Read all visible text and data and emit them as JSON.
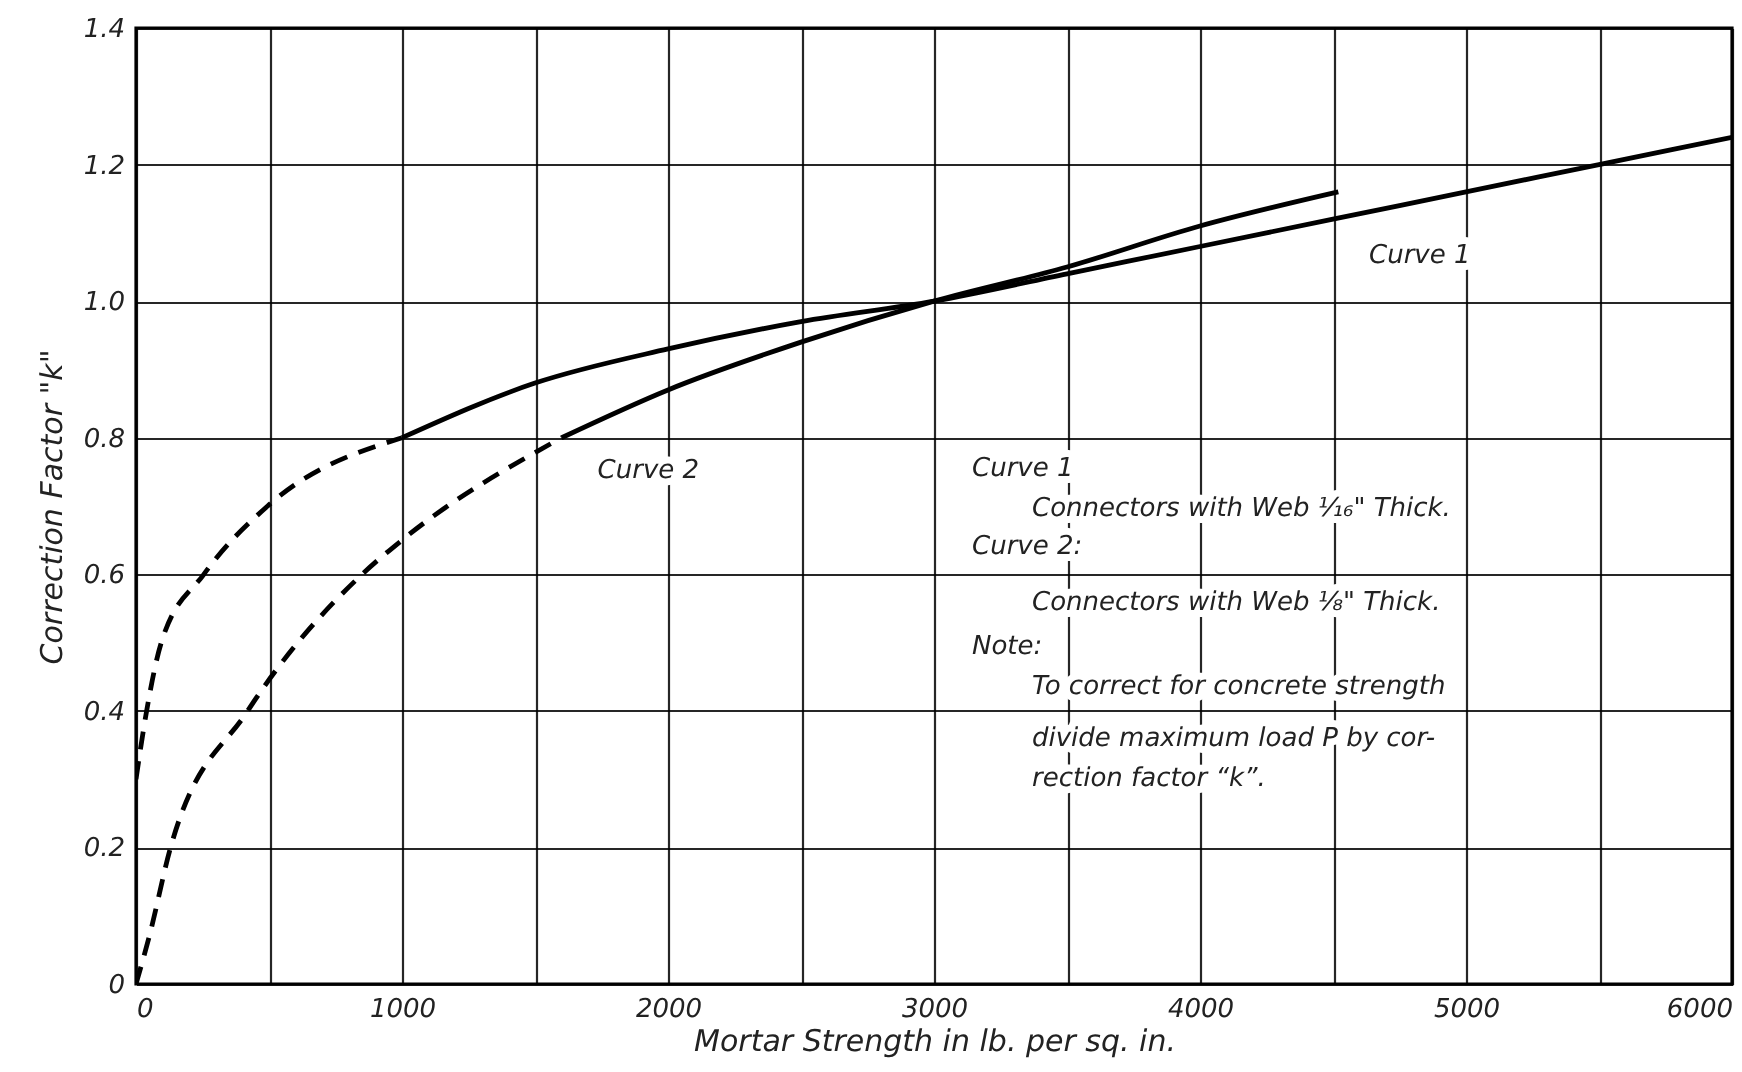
{
  "chart_data": {
    "type": "line",
    "xlabel": "Mortar Strength in lb. per sq. in.",
    "ylabel": "Correction Factor \"k\"",
    "xlim": [
      0,
      6000
    ],
    "ylim": [
      0,
      1.4
    ],
    "xticks": [
      0,
      {
        "value": 500,
        "label": null
      },
      1000,
      {
        "value": 1500,
        "label": null
      },
      2000,
      {
        "value": 2500,
        "label": null
      },
      3000,
      {
        "value": 3500,
        "label": null
      },
      4000,
      {
        "value": 4500,
        "label": null
      },
      5000,
      {
        "value": 5500,
        "label": null
      },
      6000
    ],
    "yticks": [
      0,
      0.2,
      0.4,
      0.6,
      0.8,
      {
        "value": 1,
        "label": "1.0"
      },
      1.2,
      1.4
    ],
    "grid": true,
    "series": [
      {
        "color": "#000000",
        "line_style": "dashed",
        "x": [
          0,
          40,
          95,
          255,
          495,
          1000
        ],
        "values": [
          0.3,
          0.4,
          0.5,
          0.6,
          0.7,
          0.8
        ]
      },
      {
        "name": "Curve 1",
        "color": "#000000",
        "line_style": "solid",
        "x": [
          1000,
          1500,
          2000,
          2500,
          3000,
          3500,
          4000,
          4500,
          5000,
          5500,
          6000
        ],
        "values": [
          0.8,
          0.88,
          0.93,
          0.97,
          1.0,
          1.04,
          1.08,
          1.12,
          1.16,
          1.2,
          1.24
        ]
      },
      {
        "color": "#000000",
        "line_style": "dashed",
        "x": [
          0,
          50,
          130,
          420,
          850,
          1000,
          1600
        ],
        "values": [
          0,
          0.07,
          0.2,
          0.4,
          0.6,
          0.65,
          0.8
        ]
      },
      {
        "name": "Curve 2",
        "color": "#000000",
        "line_style": "solid",
        "x": [
          1600,
          2000,
          2500,
          3000,
          3500,
          4000,
          4520
        ],
        "values": [
          0.8,
          0.87,
          0.94,
          1.0,
          1.05,
          1.11,
          1.16
        ]
      }
    ],
    "annotations": [
      "Curve 1",
      "Connectors with Web ¹⁄₁₆\" Thick.",
      "Curve 2:",
      "Connectors with Web ⅛\" Thick.",
      "Note:",
      "To correct for concrete strength",
      "divide maximum load P by cor-",
      "rection factor “k”."
    ]
  }
}
